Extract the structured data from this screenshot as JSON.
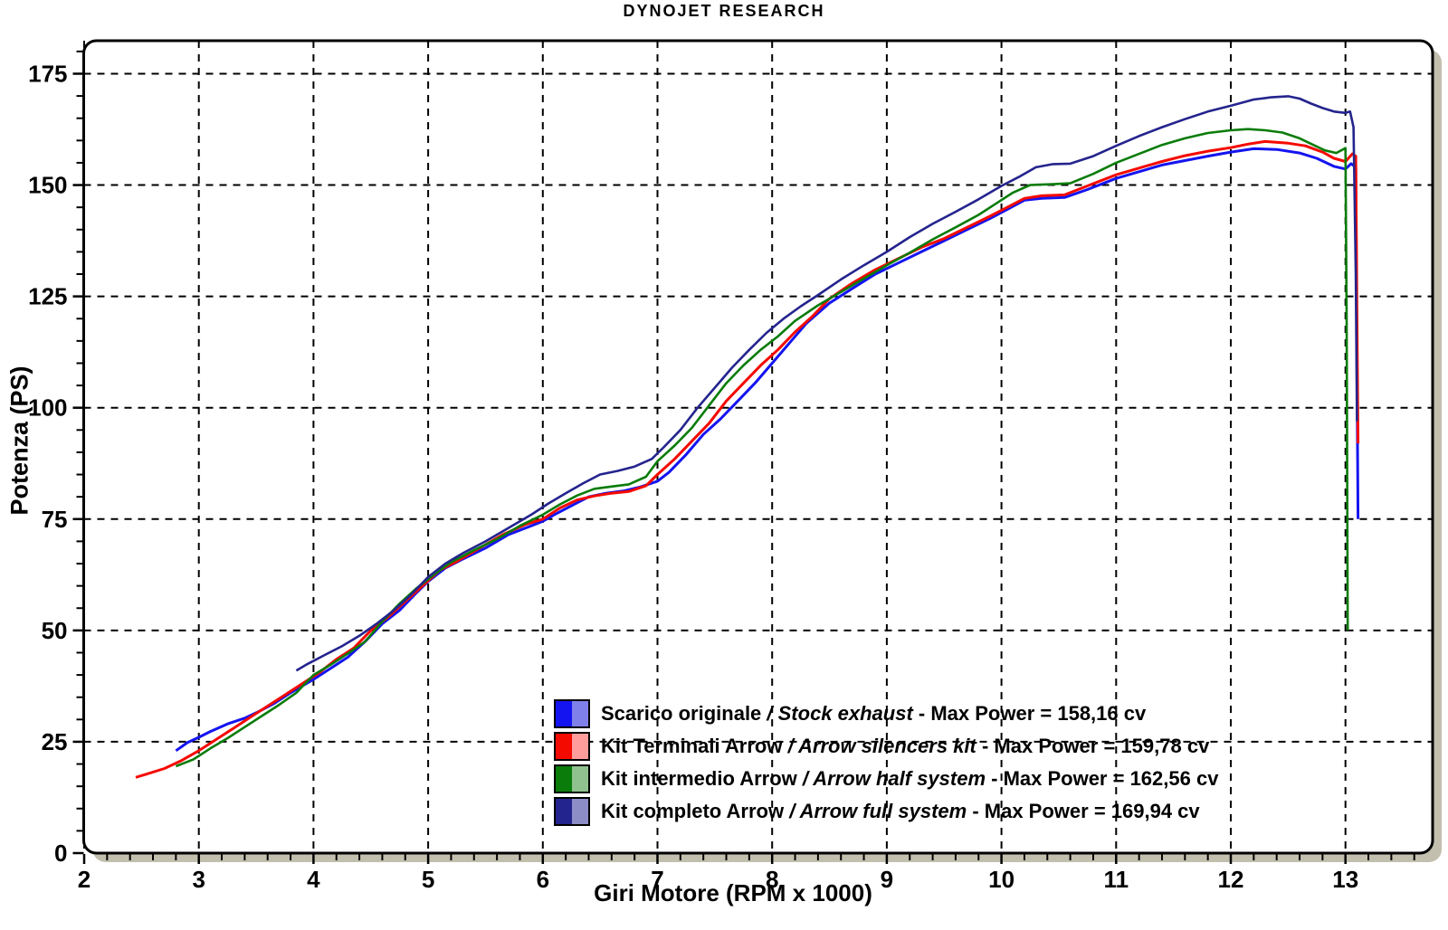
{
  "title": "DYNOJET RESEARCH",
  "chart_data": {
    "type": "line",
    "title": "DYNOJET RESEARCH",
    "xlabel": "Giri Motore (RPM x 1000)",
    "ylabel": "Potenza (PS)",
    "xlim": [
      2,
      13.77
    ],
    "ylim": [
      0,
      182.5
    ],
    "x_ticks": [
      2,
      3,
      4,
      5,
      6,
      7,
      8,
      9,
      10,
      11,
      12,
      13
    ],
    "y_ticks": [
      0,
      25,
      50,
      75,
      100,
      125,
      150,
      175
    ],
    "x_minor_step": 0.2,
    "x_minor_max": 13.6,
    "y_minor_step": 5,
    "y_minor_max": 180,
    "grid": "dashed-both-axes",
    "legend_position": "inside-bottom-center",
    "legend_separator": "/",
    "legend_dash": "-",
    "colors": {
      "background": "#ffffff",
      "frame": "#000000",
      "grid": "#000000",
      "shadow": "#c3bfae",
      "text": "#000000"
    },
    "series": [
      {
        "name": "Scarico originale",
        "name_italic": "Stock exhaust",
        "max_power_label": "Max Power = 158,16 cv",
        "max_power_cv": 158.16,
        "color": "#1414f0",
        "swatch_light": "#8080ea",
        "points": [
          [
            2.8,
            23
          ],
          [
            2.9,
            24.8
          ],
          [
            3.0,
            26
          ],
          [
            3.1,
            27.3
          ],
          [
            3.25,
            29
          ],
          [
            3.4,
            30.3
          ],
          [
            3.5,
            31.5
          ],
          [
            3.65,
            33.5
          ],
          [
            3.8,
            36
          ],
          [
            4.0,
            39
          ],
          [
            4.15,
            41.5
          ],
          [
            4.3,
            44
          ],
          [
            4.45,
            47.5
          ],
          [
            4.6,
            51.5
          ],
          [
            4.75,
            54.5
          ],
          [
            4.9,
            58.5
          ],
          [
            5.0,
            61
          ],
          [
            5.15,
            64
          ],
          [
            5.3,
            66
          ],
          [
            5.5,
            68.5
          ],
          [
            5.7,
            71.5
          ],
          [
            5.9,
            73.5
          ],
          [
            6.0,
            74.5
          ],
          [
            6.1,
            76
          ],
          [
            6.25,
            78
          ],
          [
            6.4,
            80
          ],
          [
            6.55,
            80.8
          ],
          [
            6.7,
            81.3
          ],
          [
            6.85,
            82.2
          ],
          [
            7.0,
            83.5
          ],
          [
            7.1,
            85.5
          ],
          [
            7.25,
            89.5
          ],
          [
            7.4,
            94
          ],
          [
            7.55,
            97.5
          ],
          [
            7.7,
            101.5
          ],
          [
            7.85,
            105.5
          ],
          [
            8.0,
            110
          ],
          [
            8.15,
            114.5
          ],
          [
            8.3,
            119
          ],
          [
            8.5,
            123.5
          ],
          [
            8.7,
            126.8
          ],
          [
            8.9,
            130
          ],
          [
            9.1,
            132.5
          ],
          [
            9.3,
            135
          ],
          [
            9.5,
            137.5
          ],
          [
            9.7,
            140
          ],
          [
            9.9,
            142.5
          ],
          [
            10.05,
            144.5
          ],
          [
            10.2,
            146.6
          ],
          [
            10.35,
            147
          ],
          [
            10.55,
            147.2
          ],
          [
            10.75,
            149
          ],
          [
            11.0,
            151.5
          ],
          [
            11.2,
            153
          ],
          [
            11.4,
            154.5
          ],
          [
            11.6,
            155.5
          ],
          [
            11.8,
            156.5
          ],
          [
            12.0,
            157.4
          ],
          [
            12.2,
            158.16
          ],
          [
            12.4,
            158
          ],
          [
            12.6,
            157.2
          ],
          [
            12.75,
            156
          ],
          [
            12.9,
            154.2
          ],
          [
            13.0,
            153.6
          ],
          [
            13.05,
            154.8
          ],
          [
            13.09,
            154
          ],
          [
            13.1,
            109
          ],
          [
            13.11,
            75
          ]
        ]
      },
      {
        "name": "Kit Terminali Arrow",
        "name_italic": "Arrow silencers kit",
        "max_power_label": "Max Power = 159,78 cv",
        "max_power_cv": 159.78,
        "color": "#f50a00",
        "swatch_light": "#ff9c9c",
        "points": [
          [
            2.45,
            17
          ],
          [
            2.55,
            17.8
          ],
          [
            2.7,
            19
          ],
          [
            2.85,
            20.8
          ],
          [
            3.0,
            23
          ],
          [
            3.15,
            25.5
          ],
          [
            3.3,
            28
          ],
          [
            3.45,
            30.5
          ],
          [
            3.6,
            33
          ],
          [
            3.75,
            35.5
          ],
          [
            3.9,
            38
          ],
          [
            4.05,
            40.5
          ],
          [
            4.2,
            43.5
          ],
          [
            4.35,
            46
          ],
          [
            4.5,
            50
          ],
          [
            4.65,
            53
          ],
          [
            4.8,
            56.5
          ],
          [
            4.95,
            60
          ],
          [
            5.1,
            63.5
          ],
          [
            5.25,
            65.5
          ],
          [
            5.45,
            68.5
          ],
          [
            5.65,
            71.5
          ],
          [
            5.85,
            73.8
          ],
          [
            6.0,
            75
          ],
          [
            6.15,
            77.5
          ],
          [
            6.3,
            79.3
          ],
          [
            6.45,
            80.2
          ],
          [
            6.6,
            80.8
          ],
          [
            6.75,
            81.2
          ],
          [
            6.9,
            82.5
          ],
          [
            7.0,
            85
          ],
          [
            7.15,
            88.5
          ],
          [
            7.3,
            92.5
          ],
          [
            7.45,
            96.5
          ],
          [
            7.6,
            101.5
          ],
          [
            7.75,
            105.5
          ],
          [
            7.9,
            109.5
          ],
          [
            8.05,
            113
          ],
          [
            8.2,
            117
          ],
          [
            8.35,
            120.5
          ],
          [
            8.5,
            124.5
          ],
          [
            8.7,
            128
          ],
          [
            8.9,
            131
          ],
          [
            9.1,
            133.5
          ],
          [
            9.3,
            136
          ],
          [
            9.5,
            138
          ],
          [
            9.7,
            140.5
          ],
          [
            9.9,
            143
          ],
          [
            10.05,
            145
          ],
          [
            10.2,
            147
          ],
          [
            10.35,
            147.6
          ],
          [
            10.55,
            147.8
          ],
          [
            10.75,
            149.8
          ],
          [
            11.0,
            152.3
          ],
          [
            11.2,
            153.8
          ],
          [
            11.4,
            155.3
          ],
          [
            11.6,
            156.6
          ],
          [
            11.8,
            157.6
          ],
          [
            12.0,
            158.4
          ],
          [
            12.15,
            159.2
          ],
          [
            12.3,
            159.78
          ],
          [
            12.5,
            159.4
          ],
          [
            12.65,
            158.8
          ],
          [
            12.8,
            157.4
          ],
          [
            12.9,
            156
          ],
          [
            13.0,
            155.3
          ],
          [
            13.06,
            157
          ],
          [
            13.09,
            156.5
          ],
          [
            13.1,
            120
          ],
          [
            13.11,
            92
          ]
        ]
      },
      {
        "name": "Kit intermedio Arrow",
        "name_italic": "Arrow half system",
        "max_power_label": "Max Power = 162,56 cv",
        "max_power_cv": 162.56,
        "color": "#0a7c0a",
        "swatch_light": "#90c290",
        "points": [
          [
            2.8,
            19.5
          ],
          [
            2.95,
            21
          ],
          [
            3.1,
            23.5
          ],
          [
            3.25,
            25.8
          ],
          [
            3.4,
            28.3
          ],
          [
            3.55,
            30.8
          ],
          [
            3.7,
            33.3
          ],
          [
            3.85,
            36
          ],
          [
            4.0,
            40
          ],
          [
            4.15,
            42.3
          ],
          [
            4.3,
            44.8
          ],
          [
            4.45,
            47.5
          ],
          [
            4.6,
            52
          ],
          [
            4.75,
            56
          ],
          [
            4.9,
            59.5
          ],
          [
            5.05,
            62.5
          ],
          [
            5.2,
            65.3
          ],
          [
            5.4,
            68
          ],
          [
            5.6,
            70.5
          ],
          [
            5.8,
            73.5
          ],
          [
            6.0,
            76
          ],
          [
            6.15,
            78.3
          ],
          [
            6.3,
            80.3
          ],
          [
            6.45,
            81.8
          ],
          [
            6.6,
            82.3
          ],
          [
            6.75,
            82.8
          ],
          [
            6.9,
            84.5
          ],
          [
            7.0,
            88
          ],
          [
            7.15,
            91.5
          ],
          [
            7.3,
            95.5
          ],
          [
            7.45,
            100.5
          ],
          [
            7.6,
            105.5
          ],
          [
            7.75,
            109.5
          ],
          [
            7.9,
            113
          ],
          [
            8.05,
            116
          ],
          [
            8.2,
            119.5
          ],
          [
            8.4,
            123
          ],
          [
            8.6,
            126
          ],
          [
            8.8,
            129
          ],
          [
            9.0,
            132
          ],
          [
            9.2,
            134.8
          ],
          [
            9.4,
            137.8
          ],
          [
            9.6,
            140.5
          ],
          [
            9.8,
            143.3
          ],
          [
            9.95,
            145.8
          ],
          [
            10.1,
            148.3
          ],
          [
            10.25,
            150
          ],
          [
            10.45,
            150.2
          ],
          [
            10.6,
            150.4
          ],
          [
            10.8,
            152.5
          ],
          [
            11.0,
            155
          ],
          [
            11.2,
            157
          ],
          [
            11.4,
            159
          ],
          [
            11.6,
            160.5
          ],
          [
            11.8,
            161.7
          ],
          [
            12.0,
            162.3
          ],
          [
            12.15,
            162.56
          ],
          [
            12.3,
            162.3
          ],
          [
            12.45,
            161.8
          ],
          [
            12.6,
            160.5
          ],
          [
            12.72,
            159
          ],
          [
            12.82,
            157.8
          ],
          [
            12.92,
            157.2
          ],
          [
            13.0,
            158.3
          ],
          [
            13.01,
            120
          ],
          [
            13.02,
            50
          ]
        ]
      },
      {
        "name": "Kit completo Arrow",
        "name_italic": "Arrow full system",
        "max_power_label": "Max Power = 169,94 cv",
        "max_power_cv": 169.94,
        "color": "#24248e",
        "swatch_light": "#8c8cc6",
        "points": [
          [
            3.85,
            41
          ],
          [
            3.95,
            42.5
          ],
          [
            4.1,
            44.5
          ],
          [
            4.25,
            46.5
          ],
          [
            4.4,
            48.8
          ],
          [
            4.55,
            51.5
          ],
          [
            4.7,
            54.5
          ],
          [
            4.85,
            58
          ],
          [
            5.0,
            62
          ],
          [
            5.15,
            65
          ],
          [
            5.3,
            67.3
          ],
          [
            5.5,
            70
          ],
          [
            5.7,
            73
          ],
          [
            5.9,
            76
          ],
          [
            6.05,
            78.5
          ],
          [
            6.2,
            80.8
          ],
          [
            6.35,
            83
          ],
          [
            6.5,
            85
          ],
          [
            6.65,
            85.8
          ],
          [
            6.8,
            86.8
          ],
          [
            6.95,
            88.5
          ],
          [
            7.05,
            91
          ],
          [
            7.2,
            95
          ],
          [
            7.35,
            100
          ],
          [
            7.5,
            104.5
          ],
          [
            7.65,
            109
          ],
          [
            7.8,
            113
          ],
          [
            7.95,
            116.8
          ],
          [
            8.1,
            120
          ],
          [
            8.25,
            122.8
          ],
          [
            8.4,
            125.3
          ],
          [
            8.6,
            128.8
          ],
          [
            8.8,
            132
          ],
          [
            9.0,
            135
          ],
          [
            9.2,
            138.3
          ],
          [
            9.4,
            141.3
          ],
          [
            9.6,
            144
          ],
          [
            9.8,
            146.8
          ],
          [
            10.0,
            149.8
          ],
          [
            10.15,
            151.8
          ],
          [
            10.3,
            154
          ],
          [
            10.45,
            154.7
          ],
          [
            10.6,
            154.8
          ],
          [
            10.8,
            156.5
          ],
          [
            11.0,
            158.8
          ],
          [
            11.2,
            161
          ],
          [
            11.4,
            163
          ],
          [
            11.6,
            164.8
          ],
          [
            11.8,
            166.5
          ],
          [
            12.0,
            167.8
          ],
          [
            12.2,
            169.2
          ],
          [
            12.35,
            169.7
          ],
          [
            12.5,
            169.94
          ],
          [
            12.6,
            169.4
          ],
          [
            12.7,
            168.3
          ],
          [
            12.8,
            167.3
          ],
          [
            12.9,
            166.5
          ],
          [
            13.0,
            166.2
          ],
          [
            13.04,
            166.5
          ],
          [
            13.07,
            163
          ],
          [
            13.09,
            130
          ],
          [
            13.1,
            97
          ]
        ]
      }
    ]
  }
}
